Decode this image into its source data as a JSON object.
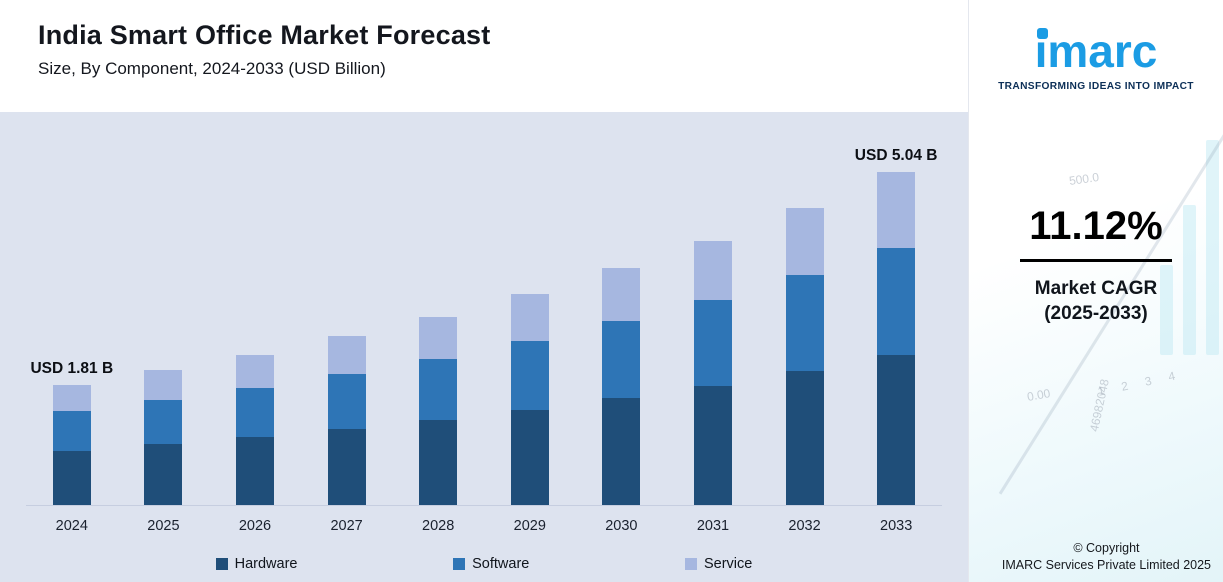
{
  "header": {
    "title": "India Smart Office Market Forecast",
    "subtitle": "Size, By Component, 2024-2033 (USD Billion)"
  },
  "chart_data": {
    "type": "bar",
    "stacked": true,
    "title": "India Smart Office Market Forecast",
    "subtitle": "Size, By Component, 2024-2033 (USD Billion)",
    "unit": "USD Billion",
    "categories": [
      "2024",
      "2025",
      "2026",
      "2027",
      "2028",
      "2029",
      "2030",
      "2031",
      "2032",
      "2033"
    ],
    "series": [
      {
        "name": "Hardware",
        "color": "#1f4e79",
        "values": [
          0.82,
          0.92,
          1.03,
          1.15,
          1.29,
          1.44,
          1.62,
          1.81,
          2.03,
          2.27
        ]
      },
      {
        "name": "Software",
        "color": "#2e75b6",
        "values": [
          0.6,
          0.66,
          0.74,
          0.83,
          0.93,
          1.05,
          1.16,
          1.3,
          1.45,
          1.62
        ]
      },
      {
        "name": "Service",
        "color": "#a6b7e0",
        "values": [
          0.39,
          0.45,
          0.5,
          0.57,
          0.63,
          0.71,
          0.8,
          0.9,
          1.02,
          1.15
        ]
      }
    ],
    "totals": [
      1.81,
      2.03,
      2.27,
      2.55,
      2.85,
      3.2,
      3.58,
      4.01,
      4.5,
      5.04
    ],
    "annotations": [
      {
        "category": "2024",
        "label": "USD 1.81 B"
      },
      {
        "category": "2033",
        "label": "USD 5.04 B"
      }
    ],
    "ylim": [
      0,
      5.5
    ],
    "grid": false,
    "legend_position": "bottom"
  },
  "sidebar": {
    "logo_text": "imarc",
    "tagline": "TRANSFORMING IDEAS INTO IMPACT",
    "cagr_value": "11.12%",
    "cagr_label": "Market CAGR",
    "cagr_period": "(2025-2033)",
    "copyright_line1": "© Copyright",
    "copyright_line2": "IMARC Services Private Limited 2025",
    "watermarks": [
      "500.0",
      "0.00",
      "1 2 3 4",
      "46982048"
    ]
  },
  "colors": {
    "chart_background": "#dde3ef",
    "hardware": "#1f4e79",
    "software": "#2e75b6",
    "service": "#a6b7e0",
    "logo_blue": "#1b9ce4",
    "tagline_navy": "#0c2f57"
  }
}
